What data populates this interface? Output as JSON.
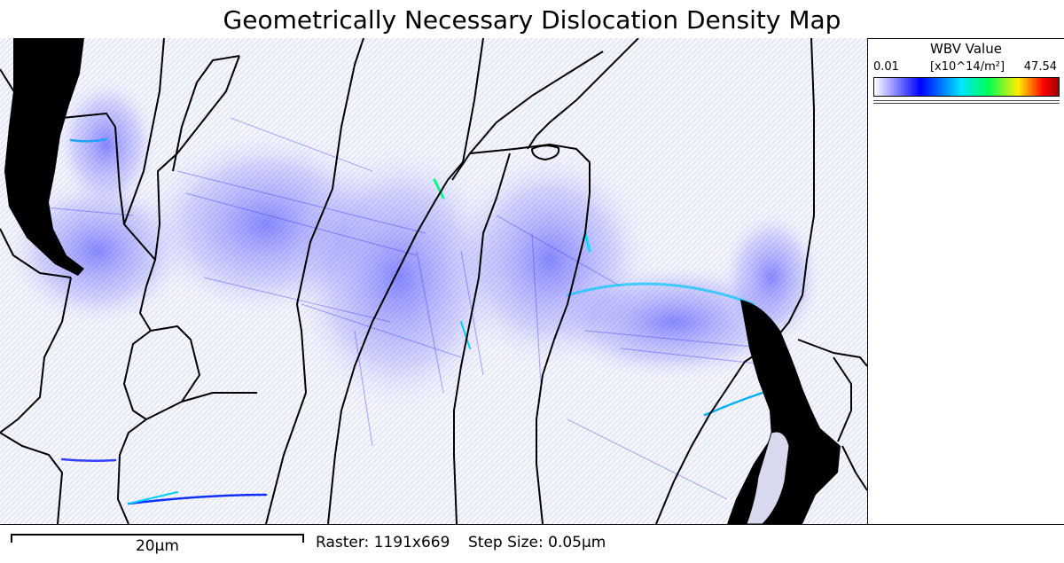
{
  "title": "Geometrically Necessary Dislocation Density Map",
  "legend": {
    "title": "WBV Value",
    "min": "0.01",
    "unit": "[x10^14/m²]",
    "max": "47.54",
    "colormap": [
      "#ffffff",
      "#0000ff",
      "#00e5ff",
      "#00ff55",
      "#ffee00",
      "#ff0000",
      "#990000"
    ]
  },
  "footer": {
    "scale_label": "20µm",
    "raster": "Raster: 1191x669",
    "step_size": "Step Size: 0.05µm"
  },
  "colors": {
    "background": "#f7f7fc",
    "boundary": "#000000",
    "low_density": "#2b2bff",
    "high_density": "#00d0ff"
  }
}
